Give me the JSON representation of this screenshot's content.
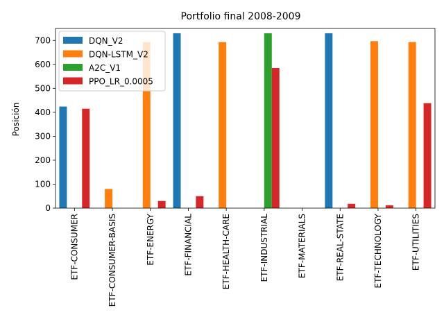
{
  "chart_data": {
    "type": "bar",
    "title": "Portfolio final 2008-2009",
    "xlabel": "",
    "ylabel": "Posición",
    "ylim": [
      0,
      750
    ],
    "yticks": [
      0,
      100,
      200,
      300,
      400,
      500,
      600,
      700
    ],
    "categories": [
      "ETF-CONSUMER",
      "ETF-CONSUMER-BASIS",
      "ETF-ENERGY",
      "ETF-FINANCIAL",
      "ETF-HEALTH-CARE",
      "ETF-INDUSTRIAL",
      "ETF-MATERIALS",
      "ETF-REAL-STATE",
      "ETF-TECHNOLOGY",
      "ETF-UTILITIES"
    ],
    "series": [
      {
        "name": "DQN_V2",
        "color": "#1f77b4",
        "values": [
          424,
          0,
          0,
          730,
          0,
          0,
          0,
          730,
          0,
          0
        ]
      },
      {
        "name": "DQN-LSTM_V2",
        "color": "#ff7f0e",
        "values": [
          0,
          80,
          693,
          0,
          693,
          0,
          0,
          0,
          697,
          693
        ]
      },
      {
        "name": "A2C_V1",
        "color": "#2ca02c",
        "values": [
          0,
          0,
          0,
          0,
          0,
          730,
          0,
          0,
          0,
          0
        ]
      },
      {
        "name": "PPO_LR_0.0005",
        "color": "#d62728",
        "values": [
          415,
          0,
          30,
          50,
          0,
          585,
          0,
          18,
          12,
          438
        ]
      }
    ],
    "legend_position": "upper-left",
    "grid": false
  }
}
